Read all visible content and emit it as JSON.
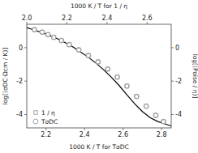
{
  "chart_data": {
    "type": "scatter",
    "xlabel": "1000 K / T  for TσDC",
    "x2label": "1000 K / T  for 1 / η",
    "ylabel": "log[(σDC·Ωcm / K)]",
    "y2label": "log[(Poise / η)]",
    "xlim": [
      2.1,
      2.85
    ],
    "xticks": [
      2.2,
      2.4,
      2.6,
      2.8
    ],
    "x2lim": [
      2.0,
      2.72
    ],
    "x2ticks": [
      {
        "value": 2.0,
        "label": "2.0"
      },
      2.2,
      2.4,
      2.6
    ],
    "ylim": [
      -4.8,
      1.4
    ],
    "yticks": [
      -4,
      -2,
      0
    ],
    "y2lim": [
      -4.8,
      1.4
    ],
    "y2ticks": [
      -4,
      -2,
      0
    ],
    "grid": false,
    "legend": "lower left",
    "series": [
      {
        "type": "line",
        "color": "black",
        "line_style": "solid",
        "x": [
          2.1,
          2.14,
          2.18,
          2.22,
          2.26,
          2.3,
          2.34,
          2.38,
          2.42,
          2.46,
          2.5,
          2.54,
          2.58,
          2.62,
          2.66,
          2.7,
          2.74,
          2.78,
          2.82,
          2.85
        ],
        "values": [
          1.2,
          1.05,
          0.9,
          0.73,
          0.53,
          0.3,
          0.04,
          -0.26,
          -0.58,
          -0.93,
          -1.33,
          -1.78,
          -2.27,
          -2.82,
          -3.35,
          -3.82,
          -4.18,
          -4.42,
          -4.57,
          -4.68
        ]
      },
      {
        "name": "1 / η",
        "type": "scatter",
        "marker": "square",
        "color": "#999999",
        "x": [
          2.14,
          2.18,
          2.21,
          2.24,
          2.28,
          2.32,
          2.37,
          2.42,
          2.47,
          2.52,
          2.57,
          2.62,
          2.67,
          2.72,
          2.77,
          2.81
        ],
        "values": [
          1.08,
          0.93,
          0.78,
          0.62,
          0.43,
          0.18,
          -0.13,
          -0.47,
          -0.85,
          -1.28,
          -1.76,
          -2.3,
          -2.92,
          -3.5,
          -4.05,
          -4.42
        ]
      },
      {
        "name": "TσDC",
        "type": "scatter",
        "marker": "circle",
        "color": "#999999",
        "x": [
          2.14,
          2.18,
          2.21,
          2.24,
          2.28,
          2.32,
          2.37,
          2.42,
          2.47,
          2.52,
          2.57,
          2.62,
          2.67,
          2.72,
          2.77,
          2.81
        ],
        "values": [
          1.08,
          0.93,
          0.78,
          0.62,
          0.43,
          0.18,
          -0.13,
          -0.47,
          -0.85,
          -1.28,
          -1.76,
          -2.3,
          -2.92,
          -3.5,
          -4.05,
          -4.42
        ]
      }
    ]
  }
}
